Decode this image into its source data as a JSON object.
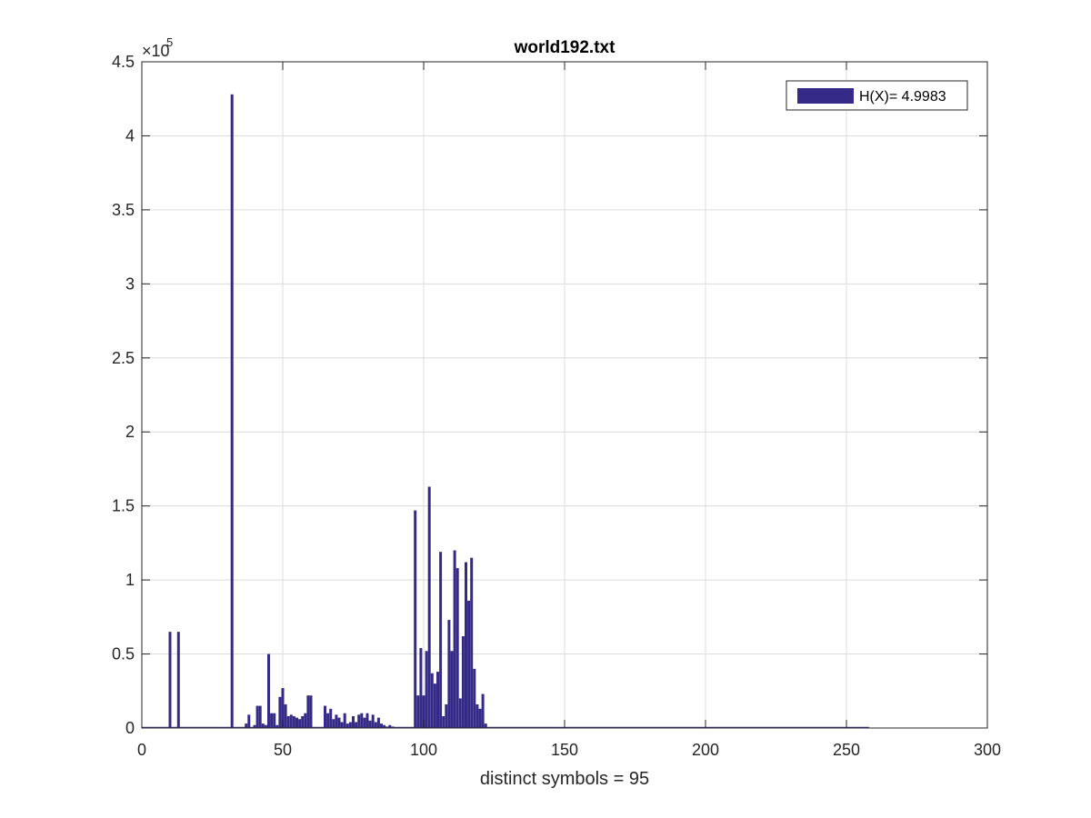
{
  "chart_data": {
    "type": "bar",
    "title": "world192.txt",
    "xlabel": "distinct symbols = 95",
    "ylabel": "",
    "xlim": [
      0,
      300
    ],
    "ylim": [
      0,
      450000
    ],
    "xticks": [
      0,
      50,
      100,
      150,
      200,
      250,
      300
    ],
    "xtick_labels": [
      "0",
      "50",
      "100",
      "150",
      "200",
      "250",
      "300"
    ],
    "yticks": [
      0,
      0.5,
      1,
      1.5,
      2,
      2.5,
      3,
      3.5,
      4,
      4.5
    ],
    "ytick_labels": [
      "0",
      "0.5",
      "1",
      "1.5",
      "2",
      "2.5",
      "3",
      "3.5",
      "4",
      "4.5"
    ],
    "y_exponent": {
      "base": "×10",
      "power": "5"
    },
    "grid": true,
    "legend_position": "top-right",
    "series": [
      {
        "name": "H(X)= 4.9983",
        "color": "#352A87",
        "x": [
          10,
          13,
          32,
          37,
          38,
          40,
          41,
          42,
          43,
          44,
          45,
          46,
          47,
          48,
          49,
          50,
          51,
          52,
          53,
          54,
          55,
          56,
          57,
          58,
          59,
          60,
          65,
          66,
          67,
          68,
          69,
          70,
          71,
          72,
          73,
          74,
          75,
          76,
          77,
          78,
          79,
          80,
          81,
          82,
          83,
          84,
          85,
          86,
          87,
          88,
          89,
          90,
          91,
          92,
          93,
          94,
          95,
          97,
          98,
          99,
          100,
          101,
          102,
          103,
          104,
          105,
          106,
          107,
          108,
          109,
          110,
          111,
          112,
          113,
          114,
          115,
          116,
          117,
          118,
          119,
          120,
          121,
          122
        ],
        "values": [
          65000,
          65000,
          428000,
          3000,
          9000,
          2000,
          15000,
          15000,
          3000,
          2000,
          50000,
          10000,
          10000,
          2000,
          21000,
          27000,
          16000,
          8000,
          9000,
          8000,
          7000,
          6000,
          8000,
          10000,
          22000,
          22000,
          15000,
          10000,
          13000,
          6000,
          9000,
          7000,
          4000,
          10000,
          3000,
          4000,
          8000,
          4000,
          9000,
          10000,
          7000,
          10000,
          5000,
          9000,
          4000,
          7000,
          3000,
          2000,
          1000,
          2000,
          1000,
          500,
          500,
          500,
          300,
          200,
          200,
          147000,
          22000,
          54000,
          22000,
          52000,
          163000,
          37000,
          30000,
          38000,
          119000,
          8000,
          16000,
          73000,
          52000,
          120000,
          108000,
          20000,
          62000,
          112000,
          86000,
          115000,
          40000,
          16000,
          13000,
          23000,
          3000
        ]
      }
    ]
  }
}
